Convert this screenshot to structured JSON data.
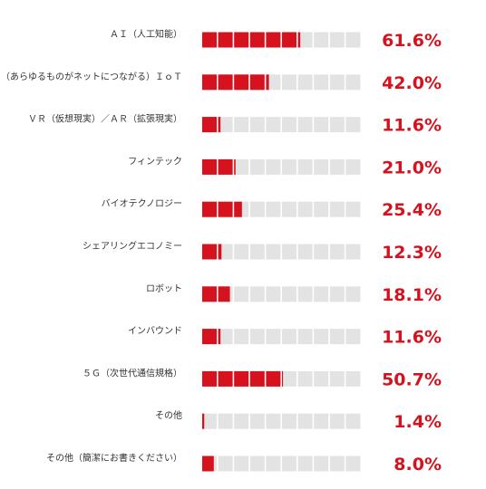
{
  "colors": {
    "filled": "#d5121d",
    "empty": "#e3e3e3",
    "value_text": "#d5121d",
    "label_text": "#333333"
  },
  "chart_data": {
    "type": "bar",
    "title": "",
    "xlabel": "",
    "ylabel": "",
    "xlim": [
      0,
      100
    ],
    "unit": "%",
    "grid": false,
    "legend": "none",
    "cell_count": 10,
    "categories": [
      "ＡＩ（人工知能）",
      "（あらゆるものがネットにつながる）ＩｏＴ",
      "ＶＲ（仮想現実）／ＡＲ（拡張現実）",
      "フィンテック",
      "バイオテクノロジー",
      "シェアリングエコノミー",
      "ロボット",
      "インバウンド",
      "５Ｇ（次世代通信規格）",
      "その他",
      "その他（簡潔にお書きください）"
    ],
    "values": [
      61.6,
      42.0,
      11.6,
      21.0,
      25.4,
      12.3,
      18.1,
      11.6,
      50.7,
      1.4,
      8.0
    ],
    "value_labels": [
      "61.6%",
      "42.0%",
      "11.6%",
      "21.0%",
      "25.4%",
      "12.3%",
      "18.1%",
      "11.6%",
      "50.7%",
      "1.4%",
      "8.0%"
    ]
  }
}
